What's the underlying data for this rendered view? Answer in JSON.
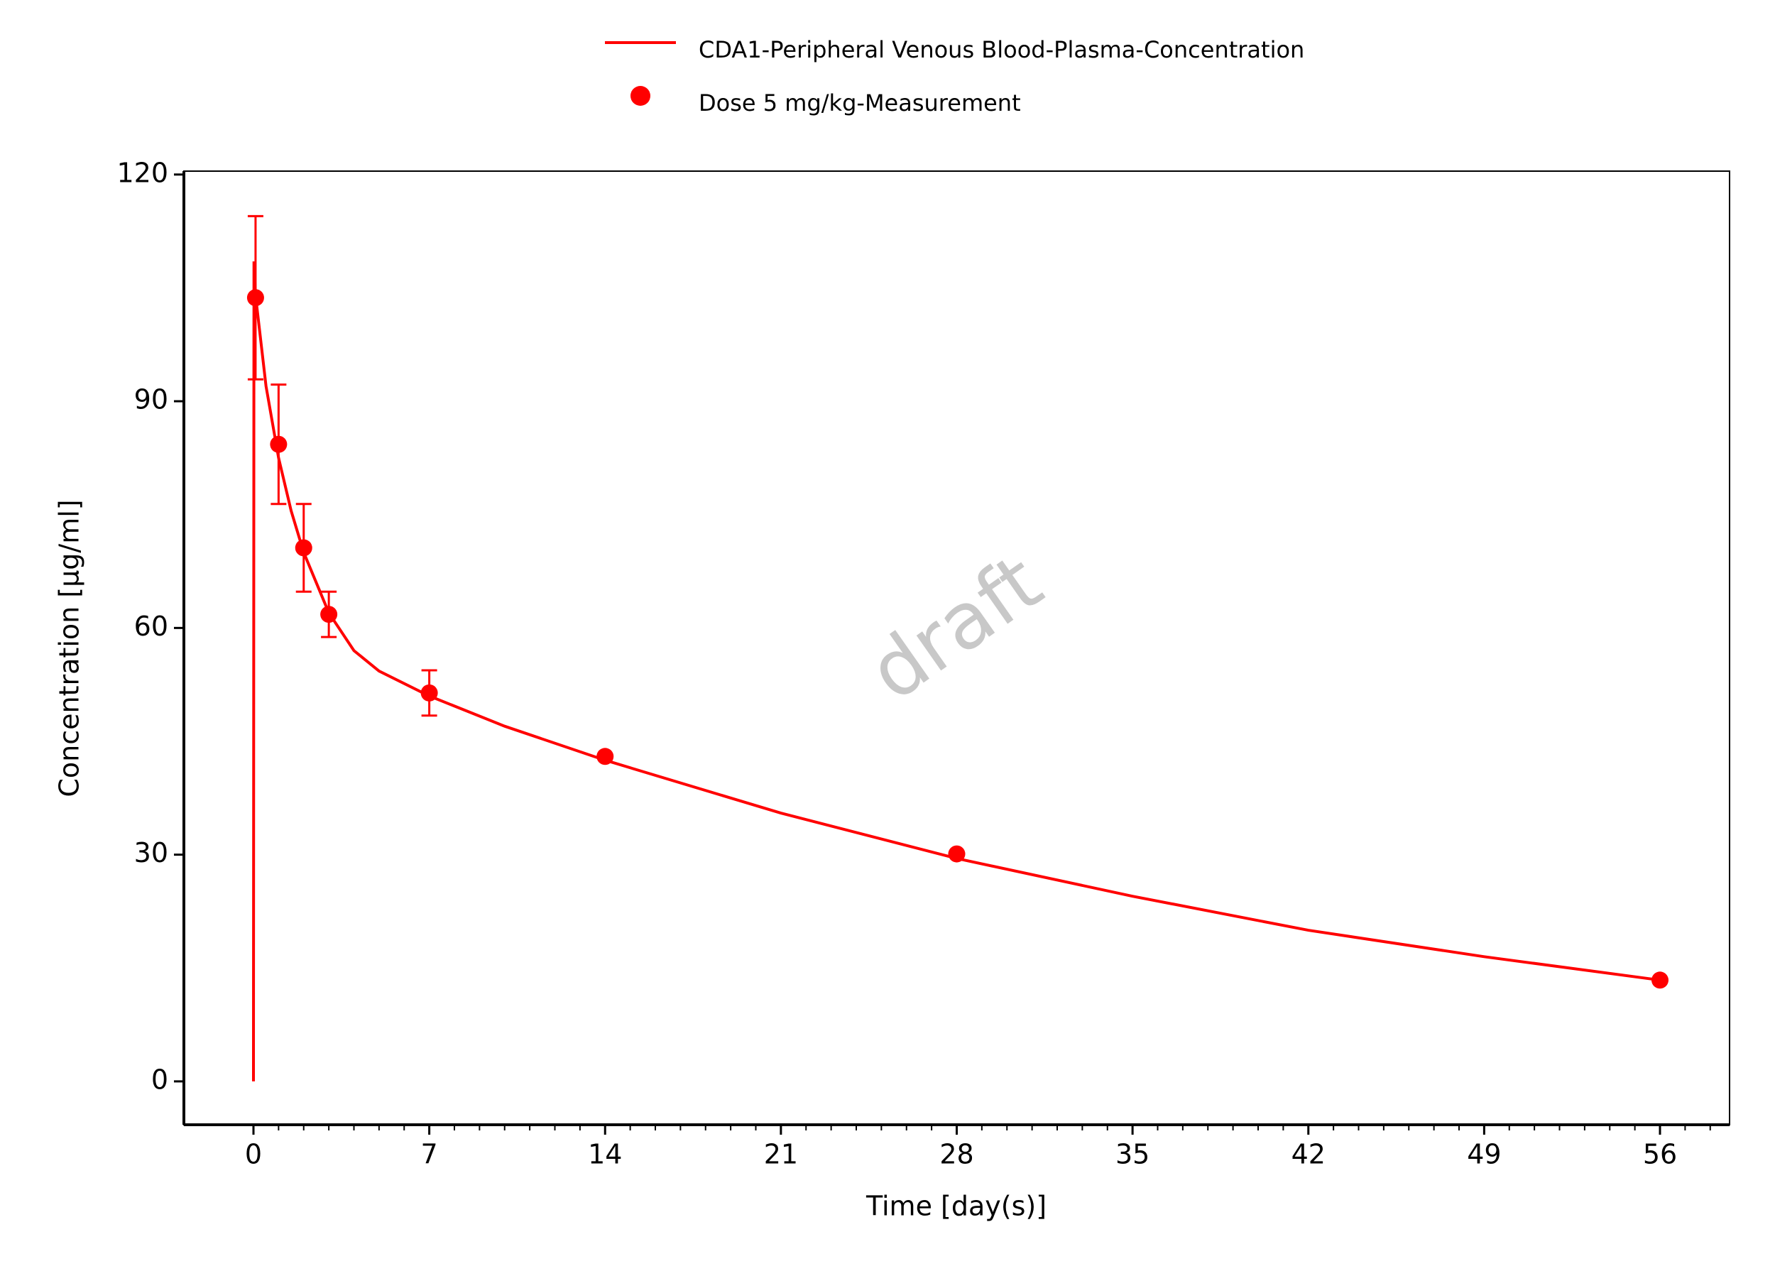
{
  "chart_data": {
    "type": "line",
    "x_label": "Time [day(s)]",
    "y_label": "Concentration [µg/ml]",
    "watermark": "draft",
    "xlim": [
      -2.77,
      58.77
    ],
    "ylim": [
      -5.74,
      120.45
    ],
    "xticks": [
      0,
      7,
      14,
      21,
      28,
      35,
      42,
      49,
      56
    ],
    "xminorticks": [
      0,
      1,
      2,
      3,
      4,
      5,
      6,
      7,
      8,
      9,
      10,
      11,
      12,
      13,
      14,
      15,
      16,
      17,
      18,
      19,
      20,
      21,
      22,
      23,
      24,
      25,
      26,
      27,
      28,
      29,
      30,
      31,
      32,
      33,
      34,
      35,
      36,
      37,
      38,
      39,
      40,
      41,
      42,
      43,
      44,
      45,
      46,
      47,
      48,
      49,
      50,
      51,
      52,
      53,
      54,
      55,
      56,
      57,
      58
    ],
    "yticks": [
      0,
      30,
      60,
      90,
      120
    ],
    "series": [
      {
        "name": "CDA1-Peripheral Venous Blood-Plasma-Concentration",
        "type": "line",
        "color": "#ff0000",
        "x": [
          0,
          0.02,
          0.083,
          0.5,
          1,
          1.5,
          2,
          3,
          4,
          5,
          7,
          10,
          14,
          21,
          28,
          35,
          42,
          49,
          56
        ],
        "values": [
          0,
          108.5,
          104,
          92,
          82.5,
          75.5,
          70,
          62,
          57,
          54.3,
          51,
          47,
          42.5,
          35.5,
          29.5,
          24.5,
          20,
          16.5,
          13.4
        ]
      },
      {
        "name": "Dose 5 mg/kg-Measurement",
        "type": "scatter",
        "color": "#ff0000",
        "x": [
          0.083,
          1,
          2,
          3,
          7,
          14,
          28,
          56
        ],
        "values": [
          103.7,
          84.3,
          70.6,
          61.8,
          51.4,
          43.0,
          30.1,
          13.4
        ],
        "errors": [
          10.8,
          7.9,
          5.8,
          3.0,
          3.0,
          null,
          null,
          null
        ]
      }
    ]
  }
}
